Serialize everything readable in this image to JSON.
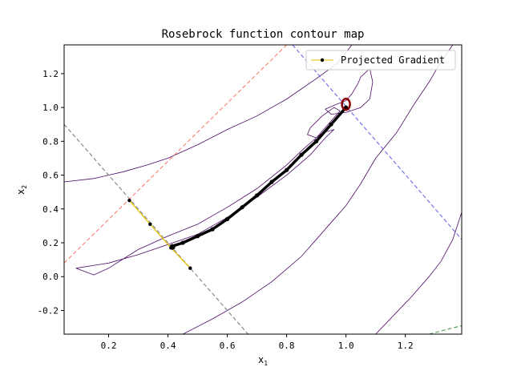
{
  "chart_data": {
    "type": "line",
    "title": "Rosebrock function contour map",
    "xlabel": "x",
    "xlabel_sub": "1",
    "ylabel": "x",
    "ylabel_sub": "2",
    "xlim": [
      0.05,
      1.39
    ],
    "ylim": [
      -0.34,
      1.37
    ],
    "x_ticks": [
      0.2,
      0.4,
      0.6,
      0.8,
      1.0,
      1.2
    ],
    "x_tick_labels": [
      "0.2",
      "0.4",
      "0.6",
      "0.8",
      "1.0",
      "1.2"
    ],
    "y_ticks": [
      -0.2,
      0.0,
      0.2,
      0.4,
      0.6,
      0.8,
      1.0,
      1.2
    ],
    "y_tick_labels": [
      "-0.2",
      "0.0",
      "0.2",
      "0.4",
      "0.6",
      "0.8",
      "1.0",
      "1.2"
    ],
    "grid": false,
    "legend": {
      "placement": "top-right",
      "entries": [
        {
          "label": "Projected Gradient",
          "color": "#e6c200",
          "marker": "dot",
          "marker_color": "#000000"
        }
      ]
    },
    "contours": [
      {
        "name": "contour-outer-upper",
        "color": "#4b0a64",
        "points": [
          [
            0.05,
            0.56
          ],
          [
            0.15,
            0.58
          ],
          [
            0.25,
            0.62
          ],
          [
            0.33,
            0.66
          ],
          [
            0.4,
            0.7
          ],
          [
            0.5,
            0.78
          ],
          [
            0.6,
            0.87
          ],
          [
            0.7,
            0.95
          ],
          [
            0.8,
            1.05
          ],
          [
            0.9,
            1.17
          ],
          [
            0.97,
            1.26
          ],
          [
            1.02,
            1.37
          ]
        ]
      },
      {
        "name": "contour-outer-lower",
        "color": "#4b0a64",
        "points": [
          [
            0.45,
            -0.34
          ],
          [
            0.55,
            -0.25
          ],
          [
            0.65,
            -0.15
          ],
          [
            0.75,
            -0.03
          ],
          [
            0.85,
            0.12
          ],
          [
            0.9,
            0.22
          ],
          [
            0.95,
            0.32
          ],
          [
            1.0,
            0.42
          ],
          [
            1.05,
            0.55
          ],
          [
            1.1,
            0.7
          ],
          [
            1.17,
            0.85
          ],
          [
            1.23,
            1.02
          ],
          [
            1.28,
            1.15
          ],
          [
            1.32,
            1.27
          ],
          [
            1.36,
            1.37
          ]
        ]
      },
      {
        "name": "contour-far-right",
        "color": "#4b0a64",
        "points": [
          [
            1.1,
            -0.34
          ],
          [
            1.16,
            -0.23
          ],
          [
            1.22,
            -0.12
          ],
          [
            1.28,
            0.0
          ],
          [
            1.32,
            0.09
          ],
          [
            1.36,
            0.22
          ],
          [
            1.39,
            0.38
          ]
        ]
      },
      {
        "name": "contour-inner-valley",
        "color": "#4b0a64",
        "points": [
          [
            0.09,
            0.05
          ],
          [
            0.2,
            0.08
          ],
          [
            0.3,
            0.13
          ],
          [
            0.4,
            0.19
          ],
          [
            0.5,
            0.25
          ],
          [
            0.6,
            0.35
          ],
          [
            0.7,
            0.47
          ],
          [
            0.8,
            0.6
          ],
          [
            0.88,
            0.72
          ],
          [
            0.93,
            0.82
          ],
          [
            0.96,
            0.87
          ],
          [
            0.92,
            0.85
          ],
          [
            0.86,
            0.76
          ],
          [
            0.8,
            0.66
          ],
          [
            0.7,
            0.52
          ],
          [
            0.6,
            0.41
          ],
          [
            0.5,
            0.31
          ],
          [
            0.4,
            0.24
          ],
          [
            0.3,
            0.16
          ],
          [
            0.2,
            0.05
          ],
          [
            0.15,
            0.01
          ],
          [
            0.12,
            0.03
          ],
          [
            0.09,
            0.05
          ]
        ]
      },
      {
        "name": "contour-upper-pocket",
        "color": "#4b0a64",
        "points": [
          [
            0.93,
            0.99
          ],
          [
            0.97,
            1.02
          ],
          [
            1.0,
            1.04
          ],
          [
            1.02,
            1.08
          ],
          [
            1.04,
            1.14
          ],
          [
            1.05,
            1.18
          ],
          [
            1.08,
            1.23
          ],
          [
            1.09,
            1.15
          ],
          [
            1.08,
            1.05
          ],
          [
            1.05,
            1.0
          ],
          [
            1.0,
            0.97
          ],
          [
            0.95,
            0.96
          ],
          [
            0.93,
            0.99
          ]
        ]
      },
      {
        "name": "contour-near-min",
        "color": "#4b0a64",
        "points": [
          [
            0.9,
            0.82
          ],
          [
            0.95,
            0.92
          ],
          [
            0.98,
            0.98
          ],
          [
            0.96,
            1.0
          ],
          [
            0.92,
            0.95
          ],
          [
            0.88,
            0.88
          ],
          [
            0.87,
            0.84
          ],
          [
            0.9,
            0.82
          ]
        ]
      }
    ],
    "reference_lines": [
      {
        "name": "grey-constraint-line",
        "color": "#808080",
        "points": [
          [
            0.05,
            0.9
          ],
          [
            0.67,
            -0.34
          ]
        ]
      },
      {
        "name": "red-constraint-line",
        "color": "#fa8072",
        "points": [
          [
            0.05,
            0.08
          ],
          [
            0.8,
            1.37
          ]
        ]
      },
      {
        "name": "blue-constraint-line",
        "color": "#6a6ae8",
        "points": [
          [
            0.82,
            1.37
          ],
          [
            1.39,
            0.22
          ]
        ]
      },
      {
        "name": "green-constraint-line",
        "color": "#50a050",
        "points": [
          [
            1.28,
            -0.34
          ],
          [
            1.39,
            -0.29
          ]
        ]
      }
    ],
    "series": [
      {
        "name": "Projected Gradient",
        "color": "#e6c200",
        "marker_color": "#000000",
        "points": [
          [
            0.27,
            0.45
          ],
          [
            0.34,
            0.31
          ],
          [
            0.41,
            0.17
          ],
          [
            0.475,
            0.05
          ],
          [
            0.415,
            0.18
          ],
          [
            0.45,
            0.2
          ],
          [
            0.5,
            0.24
          ],
          [
            0.55,
            0.28
          ],
          [
            0.6,
            0.34
          ],
          [
            0.65,
            0.41
          ],
          [
            0.7,
            0.48
          ],
          [
            0.75,
            0.56
          ],
          [
            0.8,
            0.63
          ],
          [
            0.85,
            0.72
          ],
          [
            0.9,
            0.8
          ],
          [
            0.95,
            0.9
          ],
          [
            1.0,
            1.0
          ]
        ]
      }
    ],
    "start_marker": {
      "x": 0.415,
      "y": 0.175
    },
    "end_marker": {
      "x": 1.0,
      "y": 1.0,
      "color": "#8b0000"
    }
  }
}
